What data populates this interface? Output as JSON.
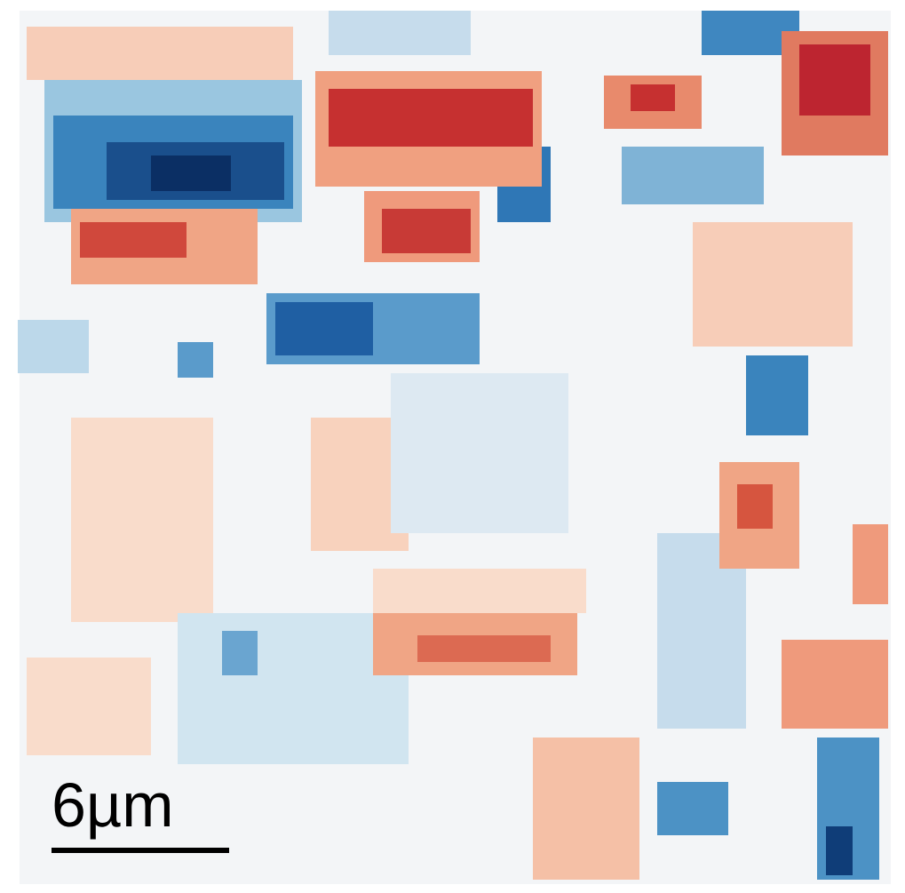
{
  "scale_bar": {
    "label": "6µm"
  }
}
